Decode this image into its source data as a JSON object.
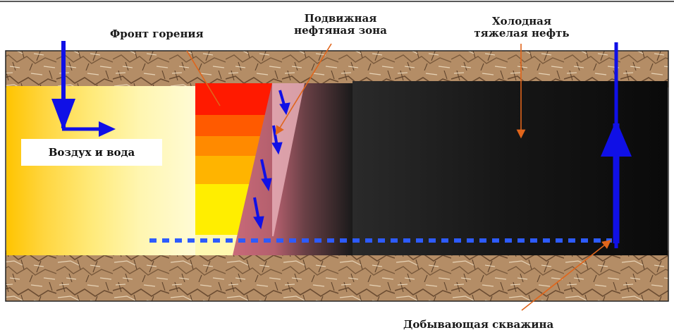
{
  "labels": {
    "combustion_front": "Фронт горения",
    "mobile_oil_zone_line1": "Подвижная",
    "mobile_oil_zone_line2": "нефтяная зона",
    "cold_heavy_oil_line1": "Холодная",
    "cold_heavy_oil_line2": "тяжелая нефть",
    "air_and_water": "Воздух и вода",
    "production_well": "Добывающая скважина"
  },
  "colors": {
    "rock": "#b9926a",
    "air_zone": "#ffd200",
    "combustion_red": "#ff1a00",
    "combustion_orange": "#ff8a00",
    "combustion_yellow": "#ffee00",
    "mobile_oil": "#cc6f7e",
    "heavy_oil": "#111111",
    "flow_arrow": "#1010e6",
    "well_dashed": "#2d5bff",
    "pointer": "#e0651b"
  },
  "icons": {
    "injection_arrow": "arrow-down-icon",
    "flow_arrow": "arrow-right-icon",
    "production_arrow": "arrow-up-icon"
  }
}
